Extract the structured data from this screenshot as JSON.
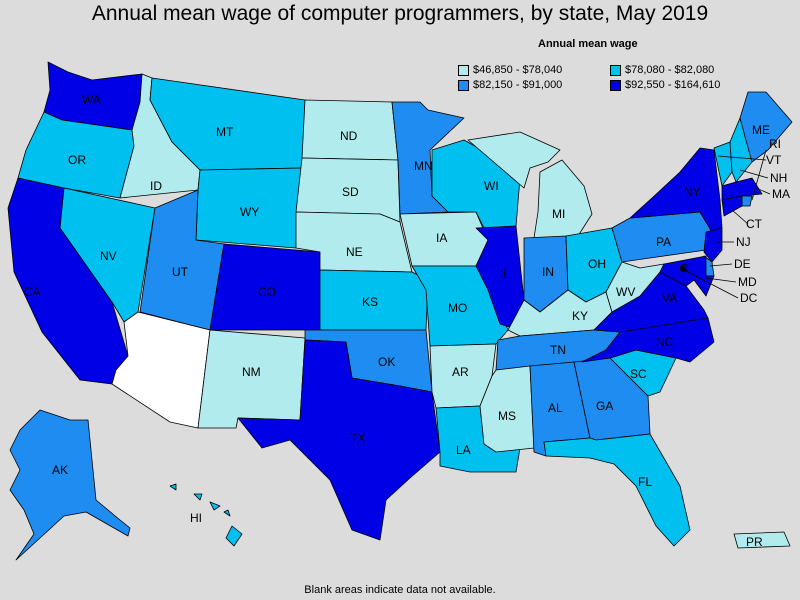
{
  "title": "Annual mean wage of computer programmers, by state, May 2019",
  "legend": {
    "title": "Annual mean wage",
    "bins": [
      {
        "label": "$46,850 - $78,040",
        "color": "#b2ebed"
      },
      {
        "label": "$78,080 - $82,080",
        "color": "#00c0f0"
      },
      {
        "label": "$82,150 - $91,000",
        "color": "#1e8cf0"
      },
      {
        "label": "$92,550 - $164,610",
        "color": "#0000e6"
      }
    ]
  },
  "no_data_color": "#ffffff",
  "footnote": "Blank areas indicate data not available.",
  "states": {
    "WA": {
      "label": "WA",
      "bin": 3
    },
    "OR": {
      "label": "OR",
      "bin": 1
    },
    "CA": {
      "label": "CA",
      "bin": 3
    },
    "NV": {
      "label": "NV",
      "bin": 1
    },
    "ID": {
      "label": "ID",
      "bin": 0
    },
    "MT": {
      "label": "MT",
      "bin": 1
    },
    "WY": {
      "label": "WY",
      "bin": 1
    },
    "UT": {
      "label": "UT",
      "bin": 2
    },
    "AZ": {
      "label": "",
      "bin": null
    },
    "CO": {
      "label": "CO",
      "bin": 3
    },
    "NM": {
      "label": "NM",
      "bin": 0
    },
    "ND": {
      "label": "ND",
      "bin": 0
    },
    "SD": {
      "label": "SD",
      "bin": 0
    },
    "NE": {
      "label": "NE",
      "bin": 0
    },
    "KS": {
      "label": "KS",
      "bin": 1
    },
    "OK": {
      "label": "OK",
      "bin": 2
    },
    "TX": {
      "label": "TX",
      "bin": 3
    },
    "MN": {
      "label": "MN",
      "bin": 2
    },
    "IA": {
      "label": "IA",
      "bin": 0
    },
    "MO": {
      "label": "MO",
      "bin": 1
    },
    "AR": {
      "label": "AR",
      "bin": 0
    },
    "LA": {
      "label": "LA",
      "bin": 1
    },
    "WI": {
      "label": "WI",
      "bin": 1
    },
    "IL": {
      "label": "IL",
      "bin": 3
    },
    "MI": {
      "label": "MI",
      "bin": 0
    },
    "IN": {
      "label": "IN",
      "bin": 2
    },
    "OH": {
      "label": "OH",
      "bin": 1
    },
    "KY": {
      "label": "KY",
      "bin": 0
    },
    "TN": {
      "label": "TN",
      "bin": 2
    },
    "MS": {
      "label": "MS",
      "bin": 0
    },
    "AL": {
      "label": "AL",
      "bin": 2
    },
    "GA": {
      "label": "GA",
      "bin": 2
    },
    "FL": {
      "label": "FL",
      "bin": 1
    },
    "SC": {
      "label": "SC",
      "bin": 1
    },
    "NC": {
      "label": "NC",
      "bin": 3
    },
    "VA": {
      "label": "VA",
      "bin": 3
    },
    "WV": {
      "label": "WV",
      "bin": 0
    },
    "PA": {
      "label": "PA",
      "bin": 2
    },
    "NY": {
      "label": "NY",
      "bin": 3
    },
    "VT": {
      "label": "VT",
      "bin": 1
    },
    "NH": {
      "label": "NH",
      "bin": 1
    },
    "ME": {
      "label": "ME",
      "bin": 2
    },
    "MA": {
      "label": "MA",
      "bin": 3
    },
    "RI": {
      "label": "RI",
      "bin": 2
    },
    "CT": {
      "label": "CT",
      "bin": 3
    },
    "NJ": {
      "label": "NJ",
      "bin": 3
    },
    "DE": {
      "label": "DE",
      "bin": 2
    },
    "MD": {
      "label": "MD",
      "bin": 3
    },
    "DC": {
      "label": "DC",
      "bin": 3
    },
    "AK": {
      "label": "AK",
      "bin": 2
    },
    "HI": {
      "label": "HI",
      "bin": 1
    },
    "PR": {
      "label": "PR",
      "bin": 0
    }
  }
}
